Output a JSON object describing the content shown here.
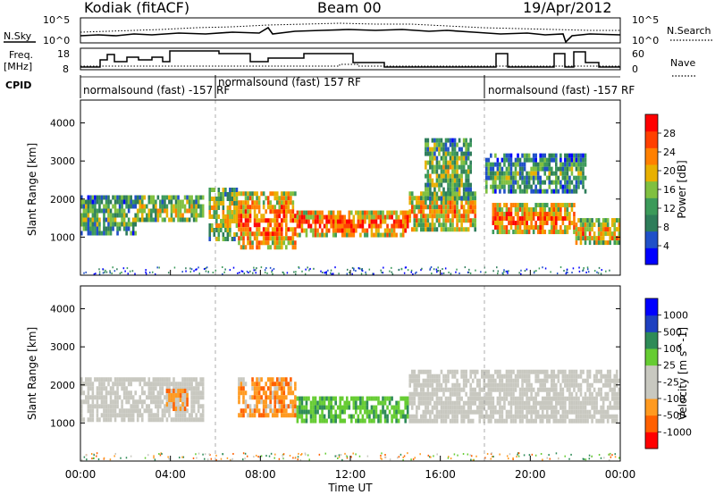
{
  "header": {
    "station": "Kodiak (fitACF)",
    "beam": "Beam 00",
    "date": "19/Apr/2012"
  },
  "left_labels": {
    "nsky": "N.Sky",
    "freq": "Freq.",
    "freq_unit": "[MHz]",
    "cpid": "CPID"
  },
  "right_labels": {
    "nsearch": "N.Search",
    "nave": "Nave"
  },
  "noise_axis": {
    "left_ticks": [
      "10^5",
      "10^0"
    ],
    "right_ticks": [
      "10^5",
      "10^0"
    ]
  },
  "freq_axis": {
    "left_ticks": [
      "18",
      "8"
    ],
    "right_ticks": [
      "60",
      "0"
    ]
  },
  "cpid_segments": [
    {
      "label": "normalsound (fast) -157 RF"
    },
    {
      "label": "normalsound (fast) 157 RF"
    },
    {
      "label": "normalsound (fast) -157 RF"
    }
  ],
  "colors": {
    "power_scale": [
      "#0000ff",
      "#2050c8",
      "#2e7d5a",
      "#3c9a5a",
      "#80c040",
      "#e8b000",
      "#ff8000",
      "#ff4000",
      "#ff0000"
    ],
    "velocity_scale": [
      "#ff0000",
      "#ff6000",
      "#ff9a20",
      "#c8c8c0",
      "#c8c8c0",
      "#66cc33",
      "#2e8b57",
      "#1e40c0",
      "#0000ff"
    ],
    "ground_scatter": "#c8c8c0"
  },
  "chart_data": [
    {
      "type": "heatmap",
      "title": "",
      "xlabel": "Time UT",
      "ylabel": "Slant Range [km]",
      "xlim": [
        "00:00",
        "24:00"
      ],
      "ylim": [
        0,
        4600
      ],
      "xticks": [
        "00:00",
        "04:00",
        "08:00",
        "12:00",
        "16:00",
        "20:00",
        "00:00"
      ],
      "yticks": [
        1000,
        2000,
        3000,
        4000
      ],
      "colorbar": {
        "label": "Power [dB]",
        "ticks": [
          4,
          8,
          12,
          16,
          20,
          24,
          28
        ],
        "range": [
          0,
          32
        ]
      },
      "features": [
        {
          "t0": 0.0,
          "t1": 2.5,
          "r0": 1100,
          "r1": 2100,
          "level": 0.45
        },
        {
          "t0": 2.5,
          "t1": 5.5,
          "r0": 1400,
          "r1": 2100,
          "level": 0.55
        },
        {
          "t0": 5.7,
          "t1": 7.0,
          "r0": 900,
          "r1": 2300,
          "level": 0.6
        },
        {
          "t0": 7.0,
          "t1": 9.6,
          "r0": 700,
          "r1": 2200,
          "level": 0.85
        },
        {
          "t0": 9.6,
          "t1": 14.6,
          "r0": 1100,
          "r1": 1700,
          "level": 0.9
        },
        {
          "t0": 14.6,
          "t1": 17.6,
          "r0": 1200,
          "r1": 2200,
          "level": 0.7
        },
        {
          "t0": 18.3,
          "t1": 22.0,
          "r0": 1100,
          "r1": 1900,
          "level": 0.85
        },
        {
          "t0": 22.0,
          "t1": 24.0,
          "r0": 800,
          "r1": 1500,
          "level": 0.7
        },
        {
          "t0": 15.3,
          "t1": 17.4,
          "r0": 2000,
          "r1": 3600,
          "level": 0.5
        },
        {
          "t0": 18.0,
          "t1": 22.5,
          "r0": 2200,
          "r1": 3200,
          "level": 0.4
        }
      ]
    },
    {
      "type": "heatmap",
      "title": "",
      "xlabel": "Time UT",
      "ylabel": "Slant Range [km]",
      "xlim": [
        "00:00",
        "24:00"
      ],
      "ylim": [
        0,
        4600
      ],
      "xticks": [
        "00:00",
        "04:00",
        "08:00",
        "12:00",
        "16:00",
        "20:00",
        "00:00"
      ],
      "yticks": [
        1000,
        2000,
        3000,
        4000
      ],
      "colorbar": {
        "label": "Velocity [m s^-1]",
        "ticks": [
          1000,
          500,
          100,
          25,
          -25,
          -100,
          -500,
          -1000
        ]
      },
      "features": [
        {
          "t0": 0.0,
          "t1": 5.5,
          "r0": 1100,
          "r1": 2200,
          "kind": "ground"
        },
        {
          "t0": 3.8,
          "t1": 4.8,
          "r0": 1400,
          "r1": 1900,
          "kind": "negative"
        },
        {
          "t0": 7.0,
          "t1": 9.6,
          "r0": 1200,
          "r1": 2200,
          "kind": "negative"
        },
        {
          "t0": 9.6,
          "t1": 14.6,
          "r0": 1100,
          "r1": 1700,
          "kind": "positive"
        },
        {
          "t0": 14.6,
          "t1": 24.0,
          "r0": 1000,
          "r1": 2400,
          "kind": "ground"
        }
      ]
    }
  ]
}
